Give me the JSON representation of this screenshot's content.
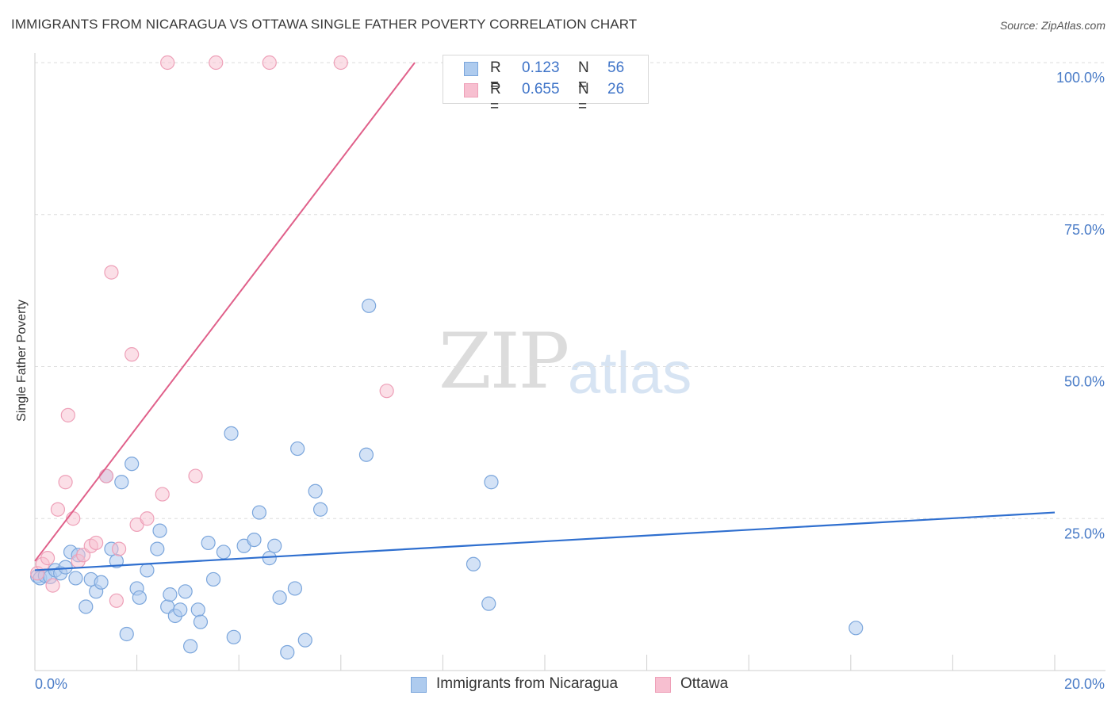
{
  "title": "IMMIGRANTS FROM NICARAGUA VS OTTAWA SINGLE FATHER POVERTY CORRELATION CHART",
  "source": "Source: ZipAtlas.com",
  "watermark": {
    "zip": "ZIP",
    "atlas": "atlas"
  },
  "legend": {
    "series1": {
      "r_label": "R =",
      "r_value": "0.123",
      "n_label": "N =",
      "n_value": "56"
    },
    "series2": {
      "r_label": "R =",
      "r_value": "0.655",
      "n_label": "N =",
      "n_value": "26"
    }
  },
  "bottom_legend": {
    "series1": "Immigrants from Nicaragua",
    "series2": "Ottawa"
  },
  "colors": {
    "blue_fill": "#aecbee",
    "blue_stroke": "#7ba6dc",
    "blue_line": "#2f6fcf",
    "pink_fill": "#f7bfd0",
    "pink_stroke": "#eea0b8",
    "pink_line": "#e0608a",
    "grid": "#dedede",
    "tick_text": "#4a7cc7"
  },
  "chart_data": {
    "type": "scatter",
    "title": "IMMIGRANTS FROM NICARAGUA VS OTTAWA SINGLE FATHER POVERTY CORRELATION CHART",
    "xlabel": "",
    "ylabel": "Single Father Poverty",
    "xlim": [
      0,
      20
    ],
    "ylim": [
      0,
      102
    ],
    "x_ticks": [
      "0.0%",
      "20.0%"
    ],
    "y_ticks": [
      {
        "value": 100,
        "label": "100.0%"
      },
      {
        "value": 75,
        "label": "75.0%"
      },
      {
        "value": 50,
        "label": "50.0%"
      },
      {
        "value": 25,
        "label": "25.0%"
      }
    ],
    "grid": true,
    "legend_position": "top-center",
    "series": [
      {
        "name": "Immigrants from Nicaragua",
        "r": 0.123,
        "n": 56,
        "trend": {
          "x": [
            0,
            20
          ],
          "y": [
            16.5,
            26.0
          ]
        },
        "points": [
          [
            0.05,
            15.5
          ],
          [
            0.1,
            15.2
          ],
          [
            0.2,
            15.6
          ],
          [
            0.3,
            15.4
          ],
          [
            0.4,
            16.5
          ],
          [
            0.5,
            16.0
          ],
          [
            0.6,
            17.0
          ],
          [
            0.7,
            19.5
          ],
          [
            0.8,
            15.2
          ],
          [
            0.85,
            19.0
          ],
          [
            1.0,
            10.5
          ],
          [
            1.1,
            15.0
          ],
          [
            1.2,
            13.0
          ],
          [
            1.3,
            14.5
          ],
          [
            1.4,
            32.0
          ],
          [
            1.5,
            20.0
          ],
          [
            1.6,
            18.0
          ],
          [
            1.7,
            31.0
          ],
          [
            1.8,
            6.0
          ],
          [
            1.9,
            34.0
          ],
          [
            2.0,
            13.5
          ],
          [
            2.05,
            12.0
          ],
          [
            2.2,
            16.5
          ],
          [
            2.4,
            20.0
          ],
          [
            2.45,
            23.0
          ],
          [
            2.6,
            10.5
          ],
          [
            2.65,
            12.5
          ],
          [
            2.75,
            9.0
          ],
          [
            2.85,
            10.0
          ],
          [
            2.95,
            13.0
          ],
          [
            3.05,
            4.0
          ],
          [
            3.2,
            10.0
          ],
          [
            3.25,
            8.0
          ],
          [
            3.4,
            21.0
          ],
          [
            3.5,
            15.0
          ],
          [
            3.7,
            19.5
          ],
          [
            3.85,
            39.0
          ],
          [
            3.9,
            5.5
          ],
          [
            4.1,
            20.5
          ],
          [
            4.3,
            21.5
          ],
          [
            4.4,
            26.0
          ],
          [
            4.6,
            18.5
          ],
          [
            4.7,
            20.5
          ],
          [
            4.8,
            12.0
          ],
          [
            4.95,
            3.0
          ],
          [
            5.1,
            13.5
          ],
          [
            5.15,
            36.5
          ],
          [
            5.3,
            5.0
          ],
          [
            5.5,
            29.5
          ],
          [
            5.6,
            26.5
          ],
          [
            6.5,
            35.5
          ],
          [
            6.55,
            60.0
          ],
          [
            8.6,
            17.5
          ],
          [
            8.9,
            11.0
          ],
          [
            8.95,
            31.0
          ],
          [
            16.1,
            7.0
          ]
        ]
      },
      {
        "name": "Ottawa",
        "r": 0.655,
        "n": 26,
        "trend": {
          "x": [
            0,
            7.45
          ],
          "y": [
            18.0,
            100.0
          ]
        },
        "points": [
          [
            0.05,
            16.0
          ],
          [
            0.15,
            17.5
          ],
          [
            0.25,
            18.5
          ],
          [
            0.35,
            14.0
          ],
          [
            0.6,
            31.0
          ],
          [
            0.65,
            42.0
          ],
          [
            0.75,
            25.0
          ],
          [
            0.45,
            26.5
          ],
          [
            0.85,
            18.0
          ],
          [
            0.95,
            19.0
          ],
          [
            1.1,
            20.5
          ],
          [
            1.2,
            21.0
          ],
          [
            1.4,
            32.0
          ],
          [
            1.5,
            65.5
          ],
          [
            1.6,
            11.5
          ],
          [
            1.65,
            20.0
          ],
          [
            1.9,
            52.0
          ],
          [
            2.0,
            24.0
          ],
          [
            2.2,
            25.0
          ],
          [
            2.5,
            29.0
          ],
          [
            3.15,
            32.0
          ],
          [
            6.9,
            46.0
          ],
          [
            2.6,
            100.0
          ],
          [
            3.55,
            100.0
          ],
          [
            4.6,
            100.0
          ],
          [
            6.0,
            100.0
          ]
        ]
      }
    ]
  }
}
